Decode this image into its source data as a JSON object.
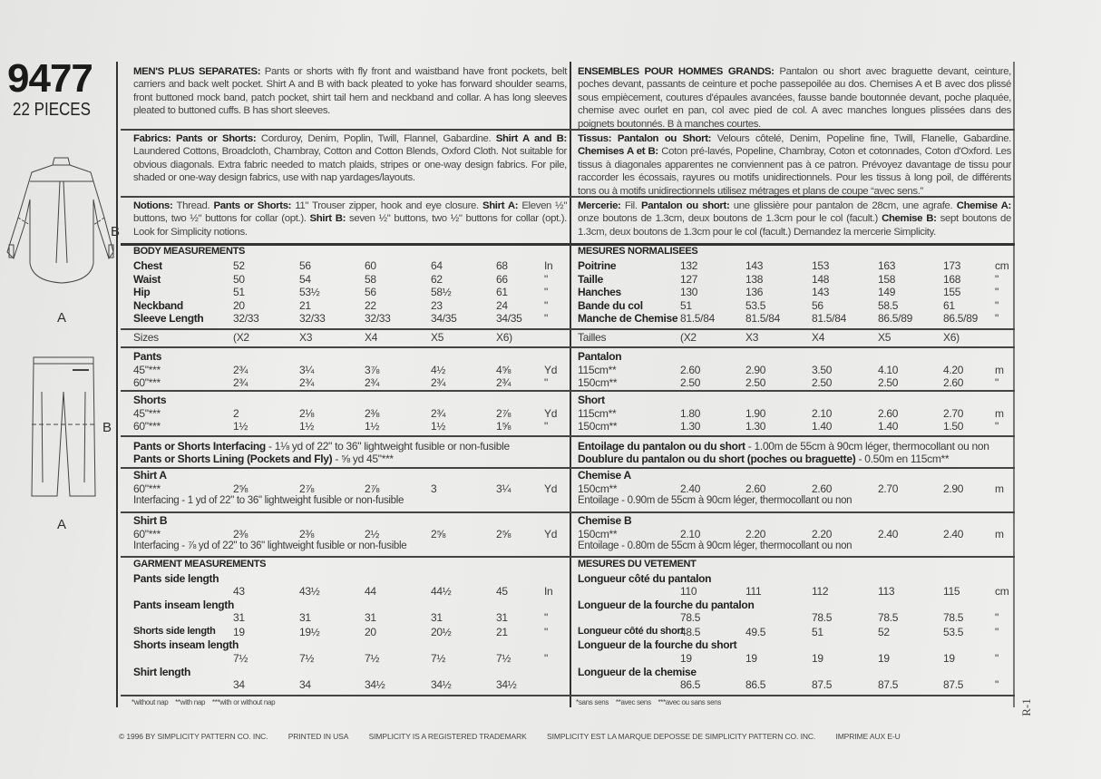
{
  "envelope": {
    "pattern_number": "9477",
    "pieces": "22 PIECES",
    "view_labels": {
      "shirt_side": "B",
      "shirt_bottom": "A",
      "pants_side": "B",
      "pants_bottom": "A"
    },
    "revision": "R-1"
  },
  "english": {
    "intro": [
      {
        "bold": true,
        "t": "MEN'S PLUS SEPARATES: "
      },
      {
        "bold": false,
        "t": "Pants or shorts with fly front and waistband have front pockets, belt carriers and back welt pocket. Shirt A and B with back pleated to yoke has forward shoulder seams, front buttoned mock band, patch pocket, shirt tail hem and neckband and collar. A has long sleeves pleated to buttoned cuffs. B has short sleeves."
      }
    ],
    "fabrics": [
      {
        "bold": true,
        "t": "Fabrics: Pants or Shorts: "
      },
      {
        "bold": false,
        "t": "Corduroy, Denim, Poplin, Twill, Flannel, Gabardine. "
      },
      {
        "bold": true,
        "t": "Shirt A and B: "
      },
      {
        "bold": false,
        "t": "Laundered Cottons, Broadcloth, Chambray, Cotton and Cotton Blends, Oxford Cloth. Not suitable for obvious diagonals. Extra fabric needed to match plaids, stripes or one-way design fabrics. For pile, shaded or one-way design fabrics, use with nap yardages/layouts."
      }
    ],
    "notions": [
      {
        "bold": true,
        "t": "Notions: "
      },
      {
        "bold": false,
        "t": "Thread. "
      },
      {
        "bold": true,
        "t": "Pants or Shorts: "
      },
      {
        "bold": false,
        "t": "11\" Trouser zipper, hook and eye closure. "
      },
      {
        "bold": true,
        "t": "Shirt A: "
      },
      {
        "bold": false,
        "t": "Eleven ½\" buttons, two ½\" buttons for collar (opt.). "
      },
      {
        "bold": true,
        "t": "Shirt B: "
      },
      {
        "bold": false,
        "t": "seven ½\" buttons, two ½\" buttons for collar (opt.). Look for Simplicity notions."
      }
    ],
    "body_measurements": {
      "heading": "BODY MEASUREMENTS",
      "rows": [
        {
          "label": "Chest",
          "values": [
            "52",
            "56",
            "60",
            "64",
            "68"
          ],
          "unit": "In"
        },
        {
          "label": "Waist",
          "values": [
            "50",
            "54",
            "58",
            "62",
            "66"
          ],
          "unit": "\""
        },
        {
          "label": "Hip",
          "values": [
            "51",
            "53½",
            "56",
            "58½",
            "61"
          ],
          "unit": "\""
        },
        {
          "label": "Neckband",
          "values": [
            "20",
            "21",
            "22",
            "23",
            "24"
          ],
          "unit": "\""
        },
        {
          "label": "Sleeve Length",
          "values": [
            "32/33",
            "32/33",
            "32/33",
            "34/35",
            "34/35"
          ],
          "unit": "\""
        }
      ]
    },
    "sizes": {
      "label": "Sizes",
      "values": [
        "(X2",
        "X3",
        "X4",
        "X5",
        "X6)"
      ],
      "unit": ""
    },
    "pants": {
      "heading": "Pants",
      "rows": [
        {
          "label": "45\"***",
          "values": [
            "2¾",
            "3¼",
            "3⅞",
            "4½",
            "4⅝"
          ],
          "unit": "Yd"
        },
        {
          "label": "60\"***",
          "values": [
            "2¾",
            "2¾",
            "2¾",
            "2¾",
            "2¾"
          ],
          "unit": "\""
        }
      ]
    },
    "shorts": {
      "heading": "Shorts",
      "rows": [
        {
          "label": "45\"***",
          "values": [
            "2",
            "2⅛",
            "2⅜",
            "2¾",
            "2⅞"
          ],
          "unit": "Yd"
        },
        {
          "label": "60\"***",
          "values": [
            "1½",
            "1½",
            "1½",
            "1½",
            "1⅝"
          ],
          "unit": "\""
        }
      ]
    },
    "interfacing": [
      {
        "bold": true,
        "t": "Pants or Shorts Interfacing"
      },
      {
        "bold": false,
        "t": " - 1⅛ yd of 22\" to 36\" lightweight fusible or non-fusible"
      }
    ],
    "lining": [
      {
        "bold": true,
        "t": "Pants or Shorts Lining (Pockets and Fly)"
      },
      {
        "bold": false,
        "t": " - ⅝ yd 45\"***"
      }
    ],
    "shirt_a": {
      "heading": "Shirt A",
      "rows": [
        {
          "label": "60\"***",
          "values": [
            "2⅝",
            "2⅞",
            "2⅞",
            "3",
            "3¼"
          ],
          "unit": "Yd"
        }
      ],
      "note": "Interfacing - 1 yd of 22\" to 36\" lightweight fusible or non-fusible"
    },
    "shirt_b": {
      "heading": "Shirt B",
      "rows": [
        {
          "label": "60\"***",
          "values": [
            "2⅜",
            "2⅜",
            "2½",
            "2⅝",
            "2⅝"
          ],
          "unit": "Yd"
        }
      ],
      "note": "Interfacing - ⅞ yd of 22\" to 36\" lightweight fusible or non-fusible"
    },
    "garment_measurements": {
      "heading": "GARMENT MEASUREMENTS",
      "rows": [
        {
          "label": "Pants side length",
          "values": [
            "43",
            "43½",
            "44",
            "44½",
            "45"
          ],
          "unit": "In"
        },
        {
          "label": "Pants inseam length",
          "values": [
            "31",
            "31",
            "31",
            "31",
            "31"
          ],
          "unit": "\""
        },
        {
          "label": "Shorts side length",
          "values": [
            "19",
            "19½",
            "20",
            "20½",
            "21"
          ],
          "unit": "\""
        },
        {
          "label": "Shorts inseam length",
          "values": [
            "7½",
            "7½",
            "7½",
            "7½",
            "7½"
          ],
          "unit": "\""
        },
        {
          "label": "Shirt length",
          "values": [
            "34",
            "34",
            "34½",
            "34½",
            "34½"
          ],
          "unit": ""
        }
      ]
    },
    "footnotes": "*without nap    **with nap    ***with or without nap"
  },
  "french": {
    "intro": [
      {
        "bold": true,
        "t": "ENSEMBLES POUR HOMMES GRANDS: "
      },
      {
        "bold": false,
        "t": "Pantalon ou short avec braguette devant, ceinture, poches devant, passants de ceinture et poche passepoilée au dos. Chemises A et B avec dos plissé sous empiècement, coutures d'épaules avancées, fausse bande boutonnée devant, poche plaquée, chemise avec ourlet en pan, col avec pied de col. A avec manches longues plissées dans des poignets boutonnés. B à manches courtes."
      }
    ],
    "fabrics": [
      {
        "bold": true,
        "t": "Tissus: Pantalon ou Short: "
      },
      {
        "bold": false,
        "t": "Velours côtelé, Denim, Popeline fine, Twill, Flanelle, Gabardine. "
      },
      {
        "bold": true,
        "t": "Chemises A et B: "
      },
      {
        "bold": false,
        "t": "Coton pré-lavés, Popeline, Chambray, Coton et cotonnades, Coton d'Oxford. Les tissus à diagonales apparentes ne conviennent pas à ce patron. Prévoyez davantage de tissu pour raccorder les écossais, rayures ou motifs unidirectionnels. Pour les tissus à long poil, de différents tons ou à motifs unidirectionnels utilisez métrages et plans de coupe “avec sens.”"
      }
    ],
    "notions": [
      {
        "bold": true,
        "t": "Mercerie: "
      },
      {
        "bold": false,
        "t": "Fil. "
      },
      {
        "bold": true,
        "t": "Pantalon ou short: "
      },
      {
        "bold": false,
        "t": "une glissière pour pantalon de 28cm, une agrafe. "
      },
      {
        "bold": true,
        "t": "Chemise A: "
      },
      {
        "bold": false,
        "t": "onze boutons de 1.3cm, deux boutons de 1.3cm pour le col (facult.) "
      },
      {
        "bold": true,
        "t": "Chemise B: "
      },
      {
        "bold": false,
        "t": "sept boutons de 1.3cm, deux boutons de 1.3cm pour le col (facult.) Demandez la mercerie Simplicity."
      }
    ],
    "body_measurements": {
      "heading": "MESURES NORMALISEES",
      "rows": [
        {
          "label": "Poitrine",
          "values": [
            "132",
            "143",
            "153",
            "163",
            "173"
          ],
          "unit": "cm"
        },
        {
          "label": "Taille",
          "values": [
            "127",
            "138",
            "148",
            "158",
            "168"
          ],
          "unit": "\""
        },
        {
          "label": "Hanches",
          "values": [
            "130",
            "136",
            "143",
            "149",
            "155"
          ],
          "unit": "\""
        },
        {
          "label": "Bande du col",
          "values": [
            "51",
            "53.5",
            "56",
            "58.5",
            "61"
          ],
          "unit": "\""
        },
        {
          "label": "Manche de Chemise",
          "values": [
            "81.5/84",
            "81.5/84",
            "81.5/84",
            "86.5/89",
            "86.5/89"
          ],
          "unit": "\""
        }
      ]
    },
    "sizes": {
      "label": "Tailles",
      "values": [
        "(X2",
        "X3",
        "X4",
        "X5",
        "X6)"
      ],
      "unit": ""
    },
    "pants": {
      "heading": "Pantalon",
      "rows": [
        {
          "label": "115cm**",
          "values": [
            "2.60",
            "2.90",
            "3.50",
            "4.10",
            "4.20"
          ],
          "unit": "m"
        },
        {
          "label": "150cm**",
          "values": [
            "2.50",
            "2.50",
            "2.50",
            "2.50",
            "2.60"
          ],
          "unit": "\""
        }
      ]
    },
    "shorts": {
      "heading": "Short",
      "rows": [
        {
          "label": "115cm**",
          "values": [
            "1.80",
            "1.90",
            "2.10",
            "2.60",
            "2.70"
          ],
          "unit": "m"
        },
        {
          "label": "150cm**",
          "values": [
            "1.30",
            "1.30",
            "1.40",
            "1.40",
            "1.50"
          ],
          "unit": "\""
        }
      ]
    },
    "interfacing": [
      {
        "bold": true,
        "t": "Entoilage du pantalon ou du short"
      },
      {
        "bold": false,
        "t": " - 1.00m de 55cm à 90cm léger, thermocollant ou non"
      }
    ],
    "lining": [
      {
        "bold": true,
        "t": "Doublure du pantalon ou du short (poches ou braguette)"
      },
      {
        "bold": false,
        "t": " - 0.50m en 115cm**"
      }
    ],
    "shirt_a": {
      "heading": "Chemise A",
      "rows": [
        {
          "label": "150cm**",
          "values": [
            "2.40",
            "2.60",
            "2.60",
            "2.70",
            "2.90"
          ],
          "unit": "m"
        }
      ],
      "note": "Entoilage - 0.90m de 55cm à 90cm léger, thermocollant ou non"
    },
    "shirt_b": {
      "heading": "Chemise B",
      "rows": [
        {
          "label": "150cm**",
          "values": [
            "2.10",
            "2.20",
            "2.20",
            "2.40",
            "2.40"
          ],
          "unit": "m"
        }
      ],
      "note": "Entoilage - 0.80m de 55cm à 90cm léger, thermocollant ou non"
    },
    "garment_measurements": {
      "heading": "MESURES DU VETEMENT",
      "rows": [
        {
          "label": "Longueur côté du pantalon",
          "values": [
            "110",
            "111",
            "112",
            "113",
            "115"
          ],
          "unit": "cm"
        },
        {
          "label": "Longueur de la fourche du pantalon",
          "values": [
            "78.5",
            "",
            "78.5",
            "78.5",
            "78.5"
          ],
          "unit": "\""
        },
        {
          "label": "Longueur côté du short",
          "values": [
            "48.5",
            "49.5",
            "51",
            "52",
            "53.5"
          ],
          "unit": "\""
        },
        {
          "label": "Longueur de la fourche du short",
          "values": [
            "19",
            "19",
            "19",
            "19",
            "19"
          ],
          "unit": "\""
        },
        {
          "label": "Longueur de la chemise",
          "values": [
            "86.5",
            "86.5",
            "87.5",
            "87.5",
            "87.5"
          ],
          "unit": "\""
        }
      ]
    },
    "footnotes": "*sans sens    **avec sens    ***avec ou sans sens"
  },
  "footer": [
    "© 1996 BY SIMPLICITY PATTERN CO. INC.",
    "PRINTED IN USA",
    "SIMPLICITY IS A REGISTERED TRADEMARK",
    "SIMPLICITY EST LA MARQUE DEPOSSE DE SIMPLICITY PATTERN CO. INC.",
    "IMPRIME AUX E-U"
  ]
}
